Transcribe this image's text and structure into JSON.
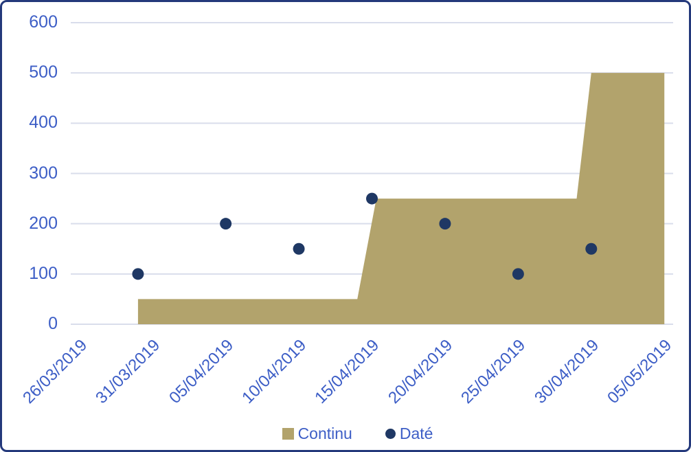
{
  "colors": {
    "frame_border": "#24397B",
    "axis_text": "#3D5EC6",
    "gridline": "#D9DDEB",
    "background": "#FFFFFF"
  },
  "chart_data": {
    "type": "combo",
    "title": "",
    "grid": true,
    "legend_position": "bottom",
    "x_axis": {
      "type": "date",
      "domain_days": [
        -0.6,
        40.6
      ],
      "ticks": [
        {
          "label": "26/03/2019",
          "day": 0
        },
        {
          "label": "31/03/2019",
          "day": 5
        },
        {
          "label": "05/04/2019",
          "day": 10
        },
        {
          "label": "10/04/2019",
          "day": 15
        },
        {
          "label": "15/04/2019",
          "day": 20
        },
        {
          "label": "20/04/2019",
          "day": 25
        },
        {
          "label": "25/04/2019",
          "day": 30
        },
        {
          "label": "30/04/2019",
          "day": 35
        },
        {
          "label": "05/05/2019",
          "day": 40
        }
      ]
    },
    "y_axis": {
      "min": 0,
      "max": 600,
      "step": 100,
      "ticks": [
        {
          "label": "0",
          "value": 0
        },
        {
          "label": "100",
          "value": 100
        },
        {
          "label": "200",
          "value": 200
        },
        {
          "label": "300",
          "value": 300
        },
        {
          "label": "400",
          "value": 400
        },
        {
          "label": "500",
          "value": 500
        },
        {
          "label": "600",
          "value": 600
        }
      ]
    },
    "series": [
      {
        "name": "Continu",
        "type": "area",
        "color": "#B2A36C",
        "points": [
          {
            "date": "30/03/2019",
            "day": 4,
            "value": 50
          },
          {
            "date": "14/04/2019",
            "day": 19,
            "value": 50
          },
          {
            "date": "15/04/2019",
            "day": 20.3,
            "value": 250
          },
          {
            "date": "29/04/2019",
            "day": 34,
            "value": 250
          },
          {
            "date": "30/04/2019",
            "day": 35,
            "value": 500
          },
          {
            "date": "05/05/2019",
            "day": 40,
            "value": 500
          }
        ]
      },
      {
        "name": "Daté",
        "type": "scatter",
        "color": "#1F3864",
        "marker_radius": 8.5,
        "points": [
          {
            "date": "30/03/2019",
            "day": 4,
            "value": 100
          },
          {
            "date": "05/04/2019",
            "day": 10,
            "value": 200
          },
          {
            "date": "10/04/2019",
            "day": 15,
            "value": 150
          },
          {
            "date": "15/04/2019",
            "day": 20,
            "value": 250
          },
          {
            "date": "20/04/2019",
            "day": 25,
            "value": 200
          },
          {
            "date": "25/04/2019",
            "day": 30,
            "value": 100
          },
          {
            "date": "30/04/2019",
            "day": 35,
            "value": 150
          }
        ]
      }
    ]
  }
}
